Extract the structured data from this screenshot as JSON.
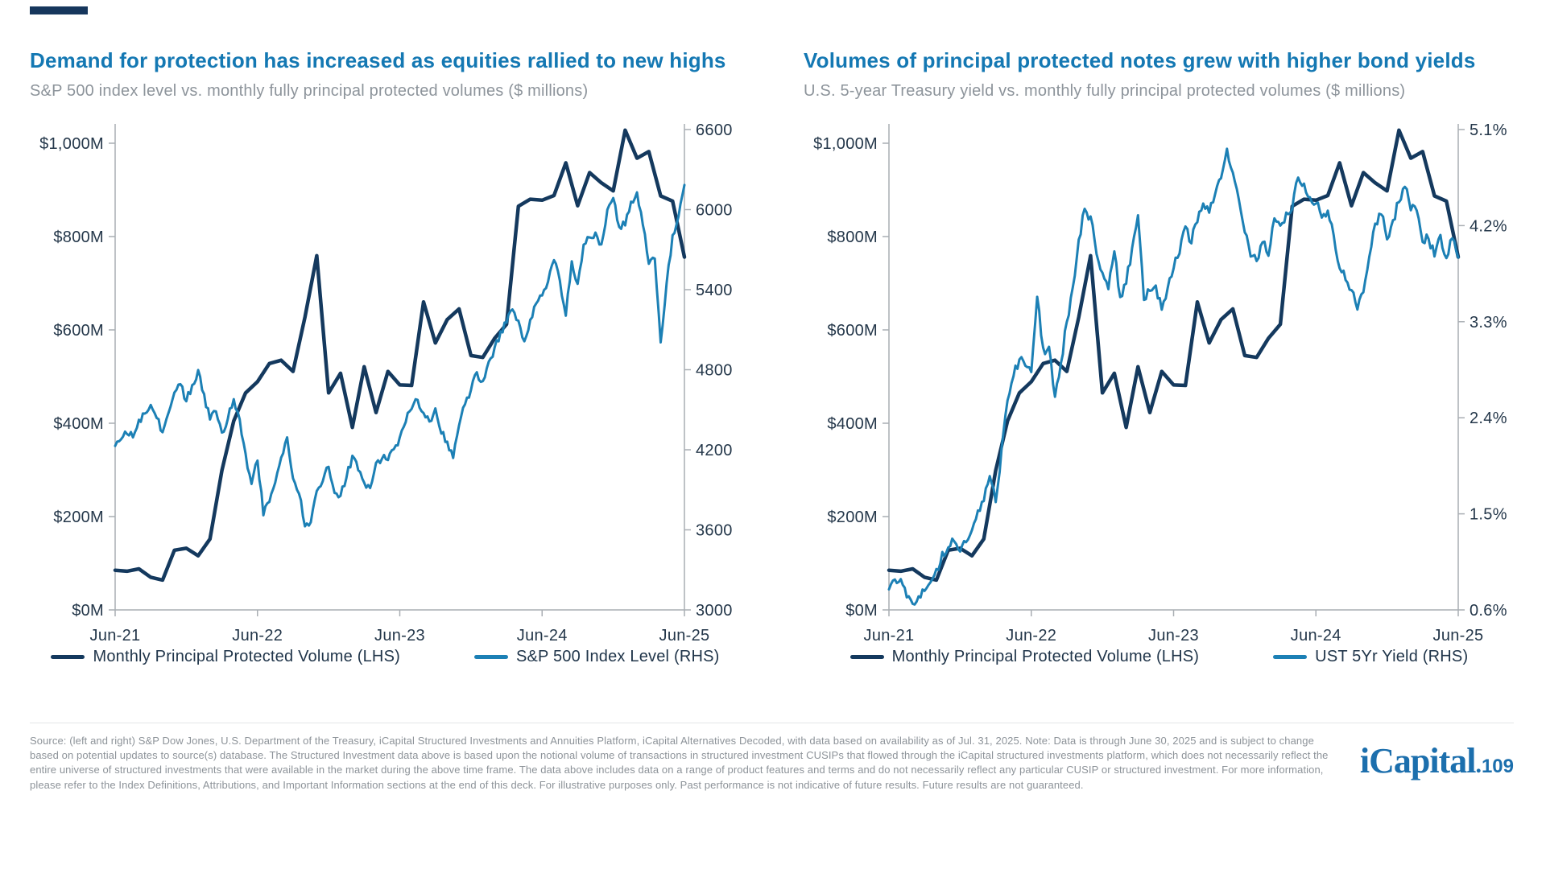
{
  "slide": {
    "background": "#FFFFFF",
    "accent_bar_color": "#16365C"
  },
  "chart_data": [
    {
      "type": "line",
      "title": "Demand for protection has increased as equities rallied to new highs",
      "subtitle": "S&P 500 index level vs. monthly fully principal protected volumes ($ millions)",
      "x_axis": {
        "tick_labels": [
          "Jun-21",
          "Jun-22",
          "Jun-23",
          "Jun-24",
          "Jun-25"
        ],
        "tick_months": [
          0,
          12,
          24,
          36,
          48
        ],
        "months_span": 48
      },
      "left_axis": {
        "tick_labels": [
          "$1,000M",
          "$800M",
          "$600M",
          "$400M",
          "$200M",
          "$0M"
        ],
        "tick_values": [
          1000,
          800,
          600,
          400,
          200,
          0
        ],
        "range": [
          0,
          1000
        ]
      },
      "right_axis": {
        "tick_labels": [
          "6600",
          "6000",
          "5400",
          "4800",
          "4200",
          "3600",
          "3000"
        ],
        "tick_values": [
          6600,
          6000,
          5400,
          4800,
          4200,
          3600,
          3000
        ],
        "range": [
          3000,
          6600
        ]
      },
      "series": [
        {
          "name": "Monthly Principal Protected Volume (LHS)",
          "axis": "left",
          "color": "#14395E",
          "stroke_width": 4.5,
          "visual_noise_amp": 0,
          "cadence": "monthly",
          "values": [
            85,
            83,
            88,
            70,
            64,
            128,
            132,
            116,
            152,
            299,
            405,
            465,
            489,
            528,
            535,
            511,
            627,
            759,
            465,
            507,
            391,
            521,
            423,
            511,
            482,
            481,
            660,
            572,
            622,
            645,
            545,
            541,
            582,
            612,
            865,
            880,
            878,
            888,
            958,
            866,
            937,
            915,
            898,
            1028,
            968,
            982,
            887,
            876,
            756
          ]
        },
        {
          "name": "S&P 500 Index Level (RHS)",
          "axis": "right",
          "color": "#1C80B5",
          "stroke_width": 3,
          "visual_noise_amp": 30,
          "cadence": "semi-monthly",
          "values": [
            4230,
            4290,
            4330,
            4290,
            4420,
            4470,
            4535,
            4445,
            4330,
            4480,
            4630,
            4700,
            4570,
            4680,
            4790,
            4610,
            4430,
            4480,
            4330,
            4430,
            4580,
            4420,
            4160,
            3950,
            4120,
            3720,
            3800,
            3950,
            4130,
            4290,
            3990,
            3880,
            3620,
            3660,
            3880,
            3970,
            4070,
            3870,
            3850,
            3990,
            4150,
            4050,
            3960,
            3910,
            4100,
            4140,
            4120,
            4200,
            4290,
            4420,
            4500,
            4580,
            4480,
            4400,
            4500,
            4330,
            4250,
            4140,
            4390,
            4550,
            4650,
            4770,
            4720,
            4850,
            4960,
            5080,
            5150,
            5250,
            5160,
            5010,
            5180,
            5300,
            5360,
            5460,
            5630,
            5460,
            5210,
            5620,
            5440,
            5730,
            5790,
            5820,
            5740,
            5990,
            6080,
            5880,
            5890,
            6060,
            6130,
            5890,
            5600,
            5630,
            5000,
            5450,
            5800,
            5950,
            6180
          ]
        }
      ]
    },
    {
      "type": "line",
      "title": "Volumes of principal protected notes grew with higher bond yields",
      "subtitle": "U.S. 5-year Treasury yield vs. monthly fully principal protected volumes ($ millions)",
      "x_axis": {
        "tick_labels": [
          "Jun-21",
          "Jun-22",
          "Jun-23",
          "Jun-24",
          "Jun-25"
        ],
        "tick_months": [
          0,
          12,
          24,
          36,
          48
        ],
        "months_span": 48
      },
      "left_axis": {
        "tick_labels": [
          "$1,000M",
          "$800M",
          "$600M",
          "$400M",
          "$200M",
          "$0M"
        ],
        "tick_values": [
          1000,
          800,
          600,
          400,
          200,
          0
        ],
        "range": [
          0,
          1000
        ]
      },
      "right_axis": {
        "tick_labels": [
          "5.1%",
          "4.2%",
          "3.3%",
          "2.4%",
          "1.5%",
          "0.6%"
        ],
        "tick_values": [
          5.1,
          4.2,
          3.3,
          2.4,
          1.5,
          0.6
        ],
        "range": [
          0.6,
          5.1
        ]
      },
      "series": [
        {
          "name": "Monthly Principal Protected Volume (LHS)",
          "axis": "left",
          "color": "#14395E",
          "stroke_width": 4.5,
          "visual_noise_amp": 0,
          "cadence": "monthly",
          "values": [
            85,
            83,
            88,
            70,
            64,
            128,
            132,
            116,
            152,
            299,
            405,
            465,
            489,
            528,
            535,
            511,
            627,
            759,
            465,
            507,
            391,
            521,
            423,
            511,
            482,
            481,
            660,
            572,
            622,
            645,
            545,
            541,
            582,
            612,
            865,
            880,
            878,
            888,
            958,
            866,
            937,
            915,
            898,
            1028,
            968,
            982,
            887,
            876,
            756
          ]
        },
        {
          "name": "UST 5Yr Yield (RHS)",
          "axis": "right",
          "color": "#1C80B5",
          "stroke_width": 3,
          "visual_noise_amp": 0.05,
          "cadence": "semi-monthly",
          "values": [
            0.78,
            0.88,
            0.87,
            0.71,
            0.66,
            0.72,
            0.77,
            0.84,
            0.97,
            1.13,
            1.18,
            1.26,
            1.14,
            1.24,
            1.35,
            1.55,
            1.61,
            1.85,
            1.62,
            2.1,
            2.55,
            2.79,
            2.96,
            2.88,
            2.81,
            3.55,
            3.04,
            3.05,
            2.61,
            2.92,
            3.3,
            3.63,
            4.06,
            4.35,
            4.27,
            3.93,
            3.75,
            3.62,
            3.97,
            3.53,
            3.65,
            4.0,
            4.28,
            3.5,
            3.6,
            3.62,
            3.4,
            3.62,
            3.8,
            3.95,
            4.2,
            4.05,
            4.25,
            4.42,
            4.32,
            4.48,
            4.63,
            4.92,
            4.7,
            4.45,
            4.15,
            3.92,
            3.86,
            4.04,
            3.92,
            4.26,
            4.18,
            4.31,
            4.35,
            4.66,
            4.6,
            4.45,
            4.42,
            4.26,
            4.35,
            4.12,
            3.8,
            3.7,
            3.58,
            3.42,
            3.58,
            3.9,
            4.2,
            4.32,
            4.08,
            4.25,
            4.42,
            4.58,
            4.36,
            4.33,
            4.05,
            4.08,
            3.92,
            4.1,
            3.9,
            4.08,
            3.9
          ]
        }
      ]
    }
  ],
  "footer": {
    "source": "Source: (left and right) S&P Dow Jones, U.S. Department of the Treasury, iCapital Structured Investments and Annuities Platform, iCapital Alternatives Decoded, with data based on availability as of Jul. 31, 2025. Note: Data is through June 30, 2025 and is subject to change based on potential updates to source(s) database. The Structured Investment data above is based upon the notional volume of transactions in structured investment CUSIPs that flowed through the iCapital structured investments platform, which does not necessarily reflect the entire universe of structured investments that were available in the market during the above time frame. The data above includes data on a range of product features and terms and do not necessarily reflect any particular CUSIP or structured investment. For more information, please refer to the Index Definitions, Attributions, and Important Information sections at the end of this deck. For illustrative purposes only. Past performance is not indicative of future results. Future results are not guaranteed."
  },
  "logo": {
    "brand": "iCapital",
    "separator": ".",
    "page_number": "109"
  }
}
